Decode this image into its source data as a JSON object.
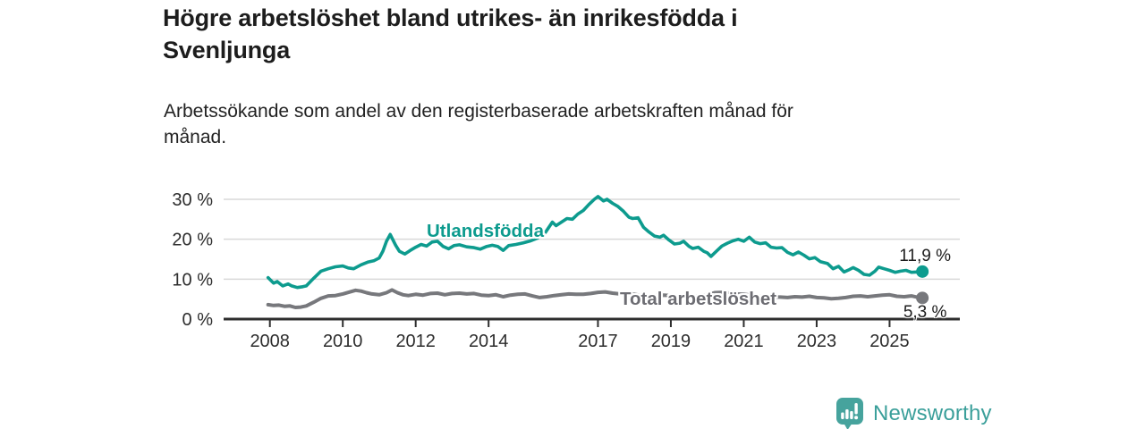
{
  "header": {
    "title_lines": [
      "Högre arbetslöshet bland utrikes- än inrikesfödda i",
      "Svenljunga"
    ],
    "subtitle_lines": [
      "Arbetssökande som andel av den registerbaserade arbetskraften månad för",
      "månad."
    ]
  },
  "branding": {
    "logo_text": "Newsworthy",
    "logo_icon": "bar-chart-speech-bubble-icon",
    "brand_color": "#46a39d"
  },
  "colors": {
    "foreign_born_line": "#0d9b8e",
    "total_line": "#77787c",
    "total_label": "#6d6d73",
    "grid": "#d9d9d9",
    "axis": "#2e2e2e",
    "tick_text": "#2d2d2d",
    "value_text": "#1c1c1c",
    "background": "#ffffff"
  },
  "chart_data": {
    "type": "line",
    "title": "Högre arbetslöshet bland utrikes- än inrikesfödda i Svenljunga",
    "subtitle": "Arbetssökande som andel av den registerbaserade arbetskraften månad för månad.",
    "unit": "%",
    "grid": "horizontal",
    "legend": "inline-labels",
    "xlim": [
      2007.6,
      2026.4
    ],
    "ylim": [
      0,
      33
    ],
    "x_ticks": [
      2008,
      2010,
      2012,
      2014,
      2017,
      2019,
      2021,
      2023,
      2025
    ],
    "x_tick_labels": [
      "2008",
      "2010",
      "2012",
      "2014",
      "2017",
      "2019",
      "2021",
      "2023",
      "2025"
    ],
    "y_ticks": [
      0,
      10,
      20,
      30
    ],
    "y_tick_labels": [
      "0 %",
      "10 %",
      "20 %",
      "30 %"
    ],
    "series": [
      {
        "name": "Utlandsfödda",
        "color": "#0d9b8e",
        "end_label": "11,9 %",
        "end_value": 11.9,
        "x": [
          2007.95,
          2008.1,
          2008.2,
          2008.35,
          2008.5,
          2008.6,
          2008.75,
          2008.9,
          2009.0,
          2009.2,
          2009.4,
          2009.6,
          2009.8,
          2010.0,
          2010.15,
          2010.3,
          2010.5,
          2010.7,
          2010.85,
          2011.0,
          2011.1,
          2011.2,
          2011.3,
          2011.45,
          2011.55,
          2011.7,
          2011.85,
          2012.0,
          2012.15,
          2012.3,
          2012.45,
          2012.6,
          2012.75,
          2012.9,
          2013.05,
          2013.2,
          2013.4,
          2013.6,
          2013.77,
          2013.95,
          2014.1,
          2014.25,
          2014.4,
          2014.55,
          2014.75,
          2014.95,
          2015.15,
          2015.35,
          2015.55,
          2015.75,
          2015.85,
          2016.0,
          2016.15,
          2016.3,
          2016.45,
          2016.6,
          2016.75,
          2016.9,
          2017.0,
          2017.15,
          2017.25,
          2017.4,
          2017.55,
          2017.7,
          2017.85,
          2017.95,
          2018.1,
          2018.25,
          2018.4,
          2018.55,
          2018.7,
          2018.8,
          2018.95,
          2019.1,
          2019.25,
          2019.35,
          2019.5,
          2019.6,
          2019.75,
          2019.9,
          2020.0,
          2020.1,
          2020.25,
          2020.4,
          2020.55,
          2020.7,
          2020.85,
          2021.0,
          2021.15,
          2021.3,
          2021.45,
          2021.6,
          2021.75,
          2021.9,
          2022.05,
          2022.2,
          2022.35,
          2022.5,
          2022.65,
          2022.8,
          2022.95,
          2023.1,
          2023.3,
          2023.45,
          2023.6,
          2023.75,
          2023.9,
          2024.0,
          2024.15,
          2024.3,
          2024.45,
          2024.6,
          2024.7,
          2024.85,
          2025.0,
          2025.15,
          2025.3,
          2025.45,
          2025.6,
          2025.75,
          2025.9
        ],
        "values": [
          10.4,
          9.0,
          9.4,
          8.3,
          8.8,
          8.3,
          7.9,
          8.1,
          8.3,
          10.2,
          12.0,
          12.6,
          13.1,
          13.3,
          12.8,
          12.6,
          13.6,
          14.3,
          14.6,
          15.3,
          17.0,
          19.5,
          21.2,
          18.5,
          17.0,
          16.3,
          17.2,
          18.0,
          18.7,
          18.3,
          19.3,
          19.5,
          18.2,
          17.6,
          18.4,
          18.6,
          18.1,
          17.9,
          17.5,
          18.2,
          18.5,
          18.2,
          17.2,
          18.4,
          18.7,
          19.1,
          19.6,
          20.3,
          21.6,
          24.3,
          23.4,
          24.3,
          25.2,
          25.0,
          26.3,
          27.2,
          28.7,
          30.0,
          30.7,
          29.6,
          30.0,
          29.0,
          28.2,
          27.0,
          25.5,
          25.2,
          25.4,
          23.0,
          21.8,
          20.8,
          20.5,
          21.0,
          19.8,
          18.8,
          19.0,
          19.5,
          18.2,
          17.7,
          18.0,
          17.0,
          16.6,
          15.7,
          17.0,
          18.3,
          19.0,
          19.6,
          20.0,
          19.5,
          20.5,
          19.3,
          18.9,
          19.1,
          18.0,
          17.8,
          17.9,
          16.7,
          16.1,
          16.8,
          16.0,
          15.1,
          15.4,
          14.4,
          13.9,
          12.6,
          13.2,
          11.8,
          12.4,
          12.9,
          12.2,
          11.2,
          11.0,
          12.0,
          13.0,
          12.6,
          12.2,
          11.7,
          12.0,
          12.2,
          11.7,
          11.8,
          11.9
        ]
      },
      {
        "name": "Total arbetslöshet",
        "color": "#77787c",
        "end_label": "5,3 %",
        "end_value": 5.3,
        "x": [
          2007.95,
          2008.1,
          2008.25,
          2008.4,
          2008.55,
          2008.7,
          2008.85,
          2009.0,
          2009.2,
          2009.4,
          2009.6,
          2009.8,
          2010.0,
          2010.2,
          2010.35,
          2010.5,
          2010.65,
          2010.8,
          2011.0,
          2011.2,
          2011.35,
          2011.5,
          2011.65,
          2011.8,
          2012.0,
          2012.2,
          2012.4,
          2012.6,
          2012.8,
          2013.0,
          2013.2,
          2013.4,
          2013.6,
          2013.8,
          2014.0,
          2014.2,
          2014.4,
          2014.6,
          2014.8,
          2015.0,
          2015.2,
          2015.4,
          2015.6,
          2015.8,
          2016.0,
          2016.2,
          2016.4,
          2016.6,
          2016.8,
          2017.0,
          2017.2,
          2017.4,
          2017.6,
          2017.8,
          2018.0,
          2018.2,
          2018.4,
          2018.6,
          2018.8,
          2019.0,
          2019.2,
          2019.4,
          2019.6,
          2019.8,
          2020.0,
          2020.2,
          2020.4,
          2020.6,
          2020.8,
          2021.0,
          2021.2,
          2021.4,
          2021.6,
          2021.8,
          2022.0,
          2022.2,
          2022.4,
          2022.6,
          2022.8,
          2023.0,
          2023.2,
          2023.4,
          2023.6,
          2023.8,
          2024.0,
          2024.2,
          2024.4,
          2024.6,
          2024.8,
          2025.0,
          2025.2,
          2025.4,
          2025.6,
          2025.75,
          2025.9
        ],
        "values": [
          3.6,
          3.4,
          3.5,
          3.2,
          3.3,
          2.9,
          3.0,
          3.3,
          4.2,
          5.2,
          5.8,
          5.9,
          6.3,
          6.8,
          7.2,
          7.0,
          6.6,
          6.3,
          6.1,
          6.6,
          7.3,
          6.6,
          6.1,
          5.9,
          6.2,
          6.0,
          6.4,
          6.5,
          6.1,
          6.4,
          6.5,
          6.3,
          6.4,
          6.0,
          5.9,
          6.1,
          5.6,
          6.0,
          6.2,
          6.3,
          5.8,
          5.4,
          5.6,
          5.9,
          6.1,
          6.3,
          6.2,
          6.2,
          6.4,
          6.7,
          6.8,
          6.5,
          6.3,
          6.1,
          6.2,
          5.9,
          5.8,
          5.9,
          6.0,
          5.9,
          5.7,
          5.6,
          5.7,
          5.9,
          6.1,
          6.6,
          6.7,
          6.5,
          6.3,
          6.2,
          6.0,
          5.8,
          5.6,
          5.5,
          5.5,
          5.4,
          5.6,
          5.5,
          5.7,
          5.4,
          5.3,
          5.1,
          5.2,
          5.4,
          5.7,
          5.8,
          5.6,
          5.8,
          6.0,
          6.1,
          5.7,
          5.6,
          5.8,
          5.5,
          5.3
        ]
      }
    ]
  }
}
